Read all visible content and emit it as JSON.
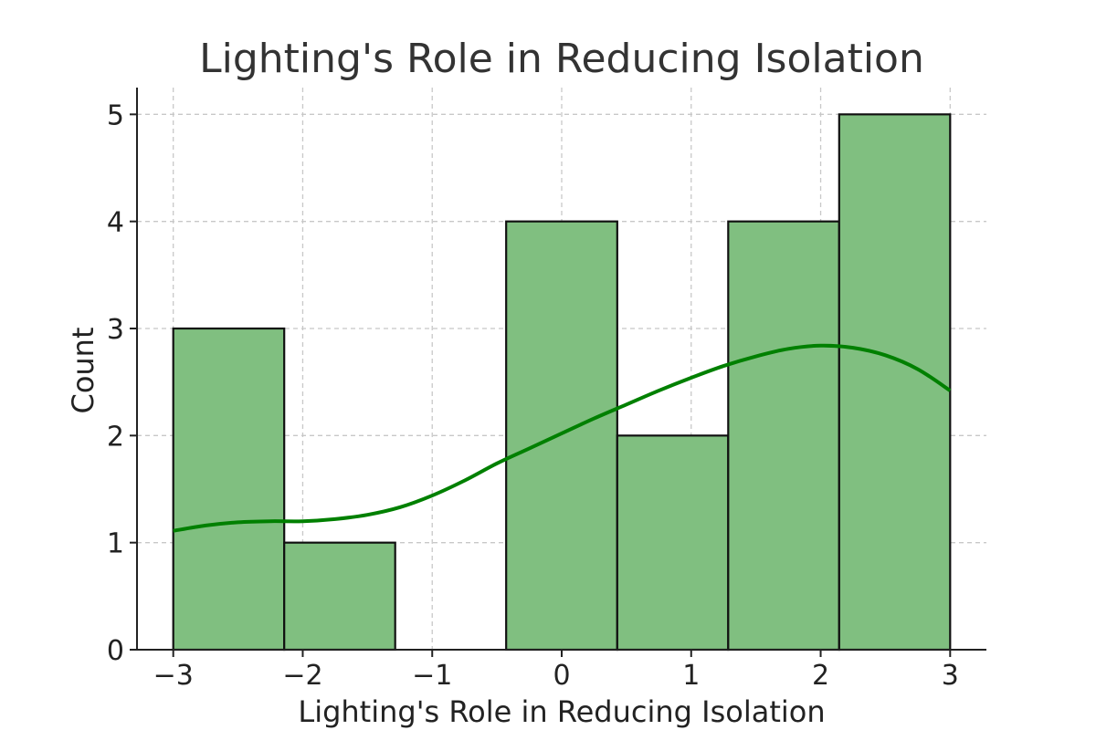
{
  "chart_data": {
    "type": "bar",
    "title": "Lighting's Role in Reducing Isolation",
    "xlabel": "Lighting's Role in Reducing Isolation",
    "ylabel": "Count",
    "xlim": [
      -3.28,
      3.28
    ],
    "ylim": [
      0,
      5.25
    ],
    "xticks": [
      -3,
      -2,
      -1,
      0,
      1,
      2,
      3
    ],
    "xtick_labels": [
      "−3",
      "−2",
      "−1",
      "0",
      "1",
      "2",
      "3"
    ],
    "yticks": [
      0,
      1,
      2,
      3,
      4,
      5
    ],
    "ytick_labels": [
      "0",
      "1",
      "2",
      "3",
      "4",
      "5"
    ],
    "grid": true,
    "bins": [
      {
        "x0": -3.0,
        "x1": -2.143,
        "count": 3
      },
      {
        "x0": -2.143,
        "x1": -1.286,
        "count": 1
      },
      {
        "x0": -1.286,
        "x1": -0.429,
        "count": 0
      },
      {
        "x0": -0.429,
        "x1": 0.429,
        "count": 4
      },
      {
        "x0": 0.429,
        "x1": 1.286,
        "count": 2
      },
      {
        "x0": 1.286,
        "x1": 2.143,
        "count": 4
      },
      {
        "x0": 2.143,
        "x1": 3.0,
        "count": 5
      }
    ],
    "kde": {
      "x": [
        -3.0,
        -2.75,
        -2.5,
        -2.25,
        -2.0,
        -1.75,
        -1.5,
        -1.25,
        -1.0,
        -0.75,
        -0.5,
        -0.25,
        0.0,
        0.25,
        0.5,
        0.75,
        1.0,
        1.25,
        1.5,
        1.75,
        2.0,
        2.25,
        2.5,
        2.75,
        3.0
      ],
      "y": [
        1.11,
        1.16,
        1.19,
        1.2,
        1.2,
        1.22,
        1.26,
        1.33,
        1.44,
        1.58,
        1.74,
        1.88,
        2.02,
        2.16,
        2.29,
        2.42,
        2.54,
        2.65,
        2.74,
        2.81,
        2.84,
        2.82,
        2.75,
        2.62,
        2.42
      ]
    },
    "colors": {
      "bar_fill": "#80bf80",
      "bar_edge": "#111111",
      "kde_line": "#008000",
      "grid": "#c8c8c8",
      "text": "#222222",
      "title": "#333333"
    }
  }
}
